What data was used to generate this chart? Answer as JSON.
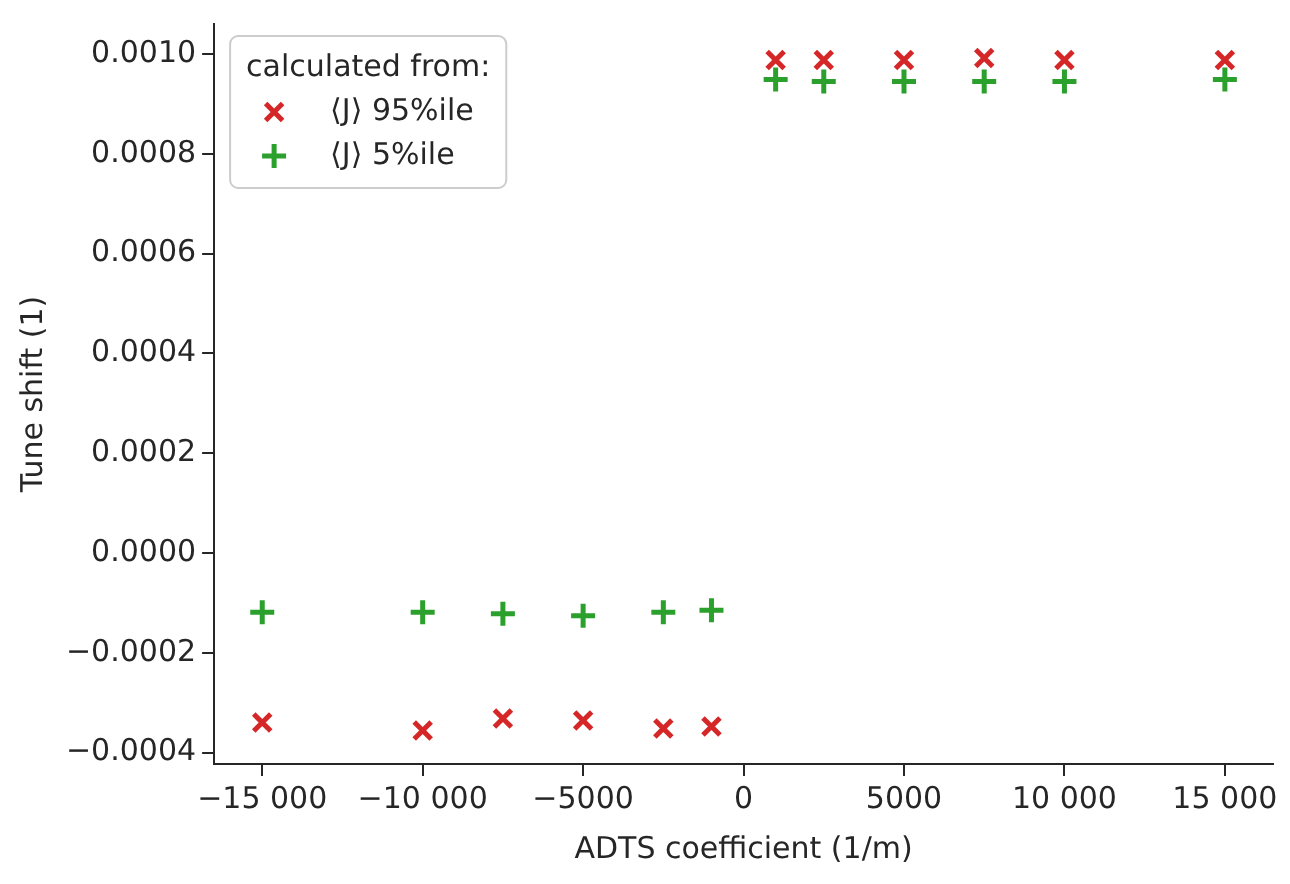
{
  "chart_data": {
    "type": "scatter",
    "xlabel": "ADTS coefficient (1/m)",
    "ylabel": "Tune shift (1)",
    "legend_title": "calculated from:",
    "legend": "top left",
    "grid": false,
    "xlim": [
      -16500,
      16500
    ],
    "ylim": [
      -0.000423,
      0.00106
    ],
    "xticks": [
      {
        "value": -15000,
        "label": "−15 000"
      },
      {
        "value": -10000,
        "label": "−10 000"
      },
      {
        "value": -5000,
        "label": "−5000"
      },
      {
        "value": 0,
        "label": "0"
      },
      {
        "value": 5000,
        "label": "5000"
      },
      {
        "value": 10000,
        "label": "10 000"
      },
      {
        "value": 15000,
        "label": "15 000"
      }
    ],
    "yticks": [
      {
        "value": -0.0004,
        "label": "−0.0004"
      },
      {
        "value": -0.0002,
        "label": "−0.0002"
      },
      {
        "value": 0,
        "label": "0.0000"
      },
      {
        "value": 0.0002,
        "label": "0.0002"
      },
      {
        "value": 0.0004,
        "label": "0.0004"
      },
      {
        "value": 0.0006,
        "label": "0.0006"
      },
      {
        "value": 0.0008,
        "label": "0.0008"
      },
      {
        "value": 0.001,
        "label": "0.0010"
      }
    ],
    "x": [
      -15000,
      -10000,
      -7500,
      -5000,
      -2500,
      -1000,
      1000,
      2500,
      5000,
      7500,
      10000,
      15000
    ],
    "series": [
      {
        "name": "⟨J⟩ 95%ile",
        "color": "#d62728",
        "marker": "x",
        "values": [
          -0.00034,
          -0.000356,
          -0.000332,
          -0.000336,
          -0.000352,
          -0.000348,
          0.000988,
          0.000988,
          0.000988,
          0.000992,
          0.000988,
          0.000988
        ]
      },
      {
        "name": "⟨J⟩ 5%ile",
        "color": "#2ca02c",
        "marker": "cross",
        "values": [
          -0.000119,
          -0.000119,
          -0.000122,
          -0.000126,
          -0.000119,
          -0.000115,
          0.000949,
          0.000945,
          0.000945,
          0.000945,
          0.000945,
          0.000949
        ]
      }
    ]
  }
}
